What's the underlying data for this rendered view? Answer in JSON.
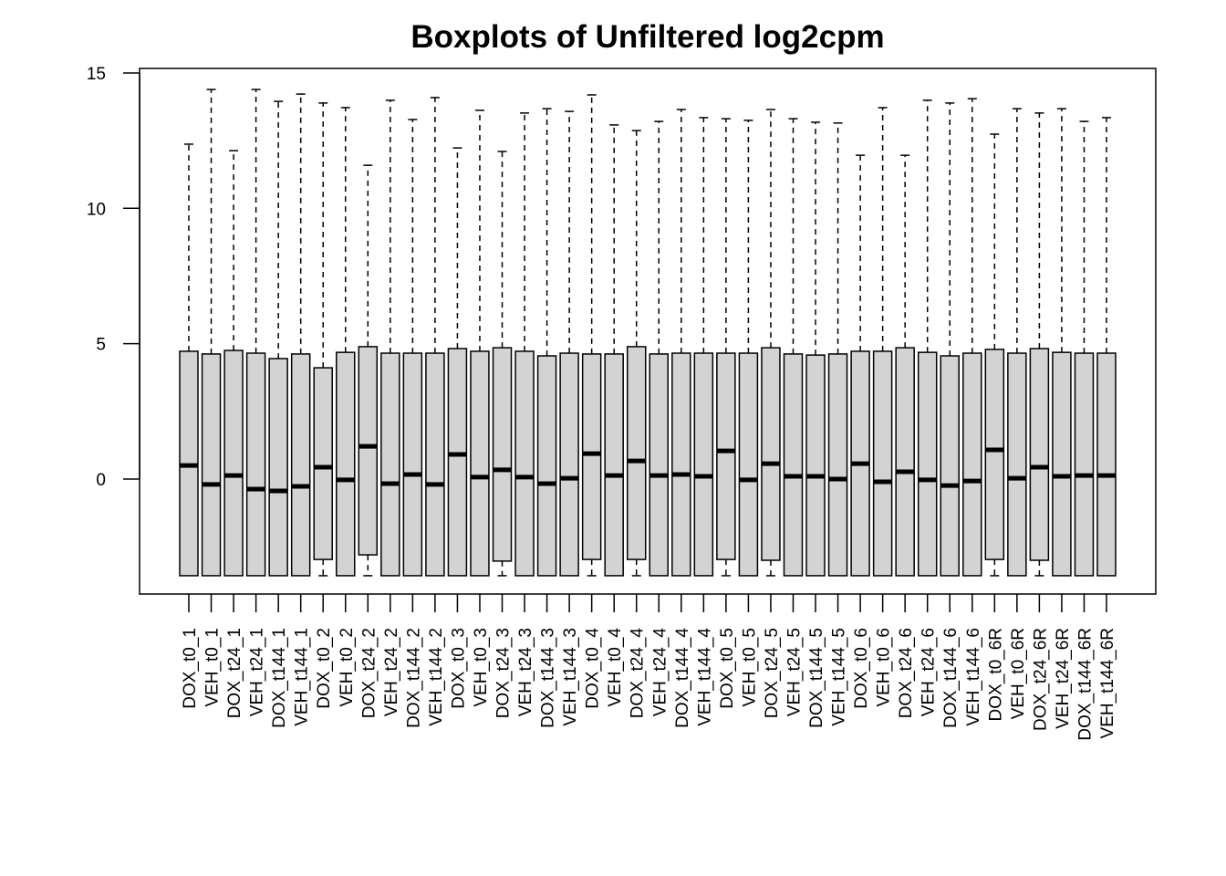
{
  "chart_data": {
    "type": "boxplot",
    "title": "Boxplots of Unfiltered log2cpm",
    "xlabel": "",
    "ylabel": "",
    "ylim": [
      -4,
      15
    ],
    "yticks": [
      0,
      5,
      10,
      15
    ],
    "ytick_labels": [
      "0",
      "5",
      "10",
      "15"
    ],
    "box_fill": "#d3d3d3",
    "grid": false,
    "categories": [
      "DOX_t0_1",
      "VEH_t0_1",
      "DOX_t24_1",
      "VEH_t24_1",
      "DOX_t144_1",
      "VEH_t144_1",
      "DOX_t0_2",
      "VEH_t0_2",
      "DOX_t24_2",
      "VEH_t24_2",
      "DOX_t144_2",
      "VEH_t144_2",
      "DOX_t0_3",
      "VEH_t0_3",
      "DOX_t24_3",
      "VEH_t24_3",
      "DOX_t144_3",
      "VEH_t144_3",
      "DOX_t0_4",
      "VEH_t0_4",
      "DOX_t24_4",
      "VEH_t24_4",
      "DOX_t144_4",
      "VEH_t144_4",
      "DOX_t0_5",
      "VEH_t0_5",
      "DOX_t24_5",
      "VEH_t24_5",
      "DOX_t144_5",
      "VEH_t144_5",
      "DOX_t0_6",
      "VEH_t0_6",
      "DOX_t24_6",
      "VEH_t24_6",
      "DOX_t144_6",
      "VEH_t144_6",
      "DOX_t0_6R",
      "VEH_t0_6R",
      "DOX_t24_6R",
      "VEH_t24_6R",
      "DOX_t144_6R",
      "VEH_t144_6R"
    ],
    "min": [
      -3.57,
      -3.57,
      -3.57,
      -3.57,
      -3.57,
      -3.57,
      -3.57,
      -3.57,
      -3.57,
      -3.57,
      -3.57,
      -3.57,
      -3.57,
      -3.57,
      -3.57,
      -3.57,
      -3.57,
      -3.57,
      -3.57,
      -3.57,
      -3.57,
      -3.57,
      -3.57,
      -3.57,
      -3.57,
      -3.57,
      -3.57,
      -3.57,
      -3.57,
      -3.57,
      -3.57,
      -3.57,
      -3.57,
      -3.57,
      -3.57,
      -3.57,
      -3.57,
      -3.57,
      -3.57,
      -3.57,
      -3.57,
      -3.57
    ],
    "q1": [
      -3.57,
      -3.57,
      -3.57,
      -3.57,
      -3.57,
      -3.57,
      -2.97,
      -3.57,
      -2.8,
      -3.57,
      -3.57,
      -3.57,
      -3.57,
      -3.57,
      -3.03,
      -3.57,
      -3.57,
      -3.57,
      -2.97,
      -3.57,
      -2.97,
      -3.57,
      -3.57,
      -3.57,
      -2.97,
      -3.57,
      -3.0,
      -3.57,
      -3.57,
      -3.57,
      -3.57,
      -3.57,
      -3.57,
      -3.57,
      -3.57,
      -3.57,
      -2.97,
      -3.57,
      -3.0,
      -3.57,
      -3.57,
      -3.57
    ],
    "median": [
      0.5,
      -0.2,
      0.13,
      -0.37,
      -0.44,
      -0.27,
      0.44,
      -0.03,
      1.21,
      -0.17,
      0.17,
      -0.2,
      0.91,
      0.07,
      0.34,
      0.07,
      -0.17,
      0.03,
      0.94,
      0.13,
      0.67,
      0.13,
      0.17,
      0.1,
      1.04,
      -0.03,
      0.57,
      0.1,
      0.1,
      0.0,
      0.57,
      -0.1,
      0.27,
      -0.03,
      -0.24,
      -0.07,
      1.08,
      0.03,
      0.44,
      0.1,
      0.13,
      0.13
    ],
    "q3": [
      4.72,
      4.62,
      4.75,
      4.65,
      4.45,
      4.62,
      4.11,
      4.68,
      4.89,
      4.65,
      4.65,
      4.65,
      4.82,
      4.72,
      4.85,
      4.72,
      4.55,
      4.65,
      4.62,
      4.62,
      4.89,
      4.62,
      4.65,
      4.65,
      4.65,
      4.65,
      4.85,
      4.62,
      4.58,
      4.62,
      4.72,
      4.72,
      4.85,
      4.68,
      4.55,
      4.65,
      4.79,
      4.65,
      4.82,
      4.68,
      4.65,
      4.65
    ],
    "max": [
      12.37,
      14.39,
      12.13,
      14.39,
      13.95,
      14.22,
      13.89,
      13.72,
      11.59,
      13.99,
      13.28,
      14.09,
      12.23,
      13.62,
      12.1,
      13.52,
      13.68,
      13.58,
      14.19,
      13.08,
      12.87,
      13.21,
      13.65,
      13.35,
      13.31,
      13.25,
      13.65,
      13.31,
      13.18,
      13.15,
      11.96,
      13.72,
      11.96,
      13.99,
      13.89,
      14.05,
      12.74,
      13.68,
      13.52,
      13.68,
      13.21,
      13.35
    ]
  }
}
